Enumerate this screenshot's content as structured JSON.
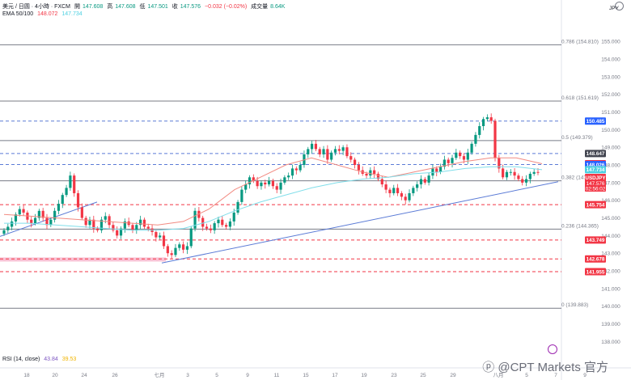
{
  "header": {
    "symbol_line": "美元 / 日圆 · 4小時 · FXCM",
    "ohlc": [
      {
        "label": "開",
        "value": "147.608"
      },
      {
        "label": "高",
        "value": "147.608"
      },
      {
        "label": "低",
        "value": "147.501"
      },
      {
        "label": "收",
        "value": "147.576"
      }
    ],
    "change": "−0.032 (−0.02%)",
    "volume_label": "成交量",
    "volume_value": "8.64K",
    "ema_label": "EMA 50/100",
    "ema50": "148.072",
    "ema100": "147.734"
  },
  "rsi": {
    "label": "RSI (14, close)",
    "v1": "43.84",
    "v2": "39.53"
  },
  "axis": {
    "currency": "JPY",
    "ticks": [
      "155.000",
      "154.000",
      "153.000",
      "152.000",
      "151.000",
      "150.000",
      "149.000",
      "148.000",
      "147.000",
      "146.000",
      "145.000",
      "144.000",
      "143.000",
      "142.000",
      "141.000",
      "140.000",
      "139.000",
      "138.000"
    ],
    "tick_values": [
      155,
      154,
      153,
      152,
      151,
      150,
      149,
      148,
      147,
      146,
      145,
      144,
      143,
      142,
      141,
      140,
      139,
      138
    ],
    "x_labels": [
      "18",
      "20",
      "24",
      "26",
      "七月",
      "3",
      "5",
      "9",
      "11",
      "15",
      "17",
      "19",
      "23",
      "25",
      "29",
      "八月",
      "5",
      "7",
      "9"
    ]
  },
  "chart_data": {
    "type": "candlestick",
    "ylim": [
      137.65,
      156.2
    ],
    "fib": [
      {
        "label": "0.786 (154.810)",
        "value": 154.81
      },
      {
        "label": "0.618 (151.619)",
        "value": 151.619
      },
      {
        "label": "0.5 (149.379)",
        "value": 149.379
      },
      {
        "label": "0.382 (147.1)",
        "value": 147.1
      },
      {
        "label": "0.236 (144.365)",
        "value": 144.365
      },
      {
        "label": "0 (139.883)",
        "value": 139.883
      }
    ],
    "dashed_levels": [
      {
        "value": 150.485,
        "color": "#5b7bd6"
      },
      {
        "value": 148.647,
        "color": "#5b7bd6"
      },
      {
        "value": 148.026,
        "color": "#5b7bd6"
      },
      {
        "value": 145.754,
        "color": "#f23645"
      },
      {
        "value": 143.749,
        "color": "#f23645"
      },
      {
        "value": 142.678,
        "color": "#f23645"
      },
      {
        "value": 141.955,
        "color": "#f23645"
      }
    ],
    "price_badges": [
      {
        "text": "150.485",
        "value": 150.485,
        "bg": "#2962ff",
        "fg": "#ffffff"
      },
      {
        "text": "148.647",
        "value": 148.647,
        "bg": "#434651",
        "fg": "#ffffff"
      },
      {
        "text": "148.072",
        "value": 148.072,
        "bg": "#f23645",
        "fg": "#ffffff"
      },
      {
        "text": "148.026",
        "value": 148.026,
        "bg": "#2962ff",
        "fg": "#ffffff"
      },
      {
        "text": "147.734",
        "value": 147.734,
        "bg": "#4dd0e1",
        "fg": "#ffffff"
      },
      {
        "text": "USDJPY",
        "value": 147.36,
        "bg": "#f23645",
        "fg": "#ffffff",
        "text2": "147.576",
        "text3": "02:56:02"
      },
      {
        "text": "145.754",
        "value": 145.754,
        "bg": "#f23645",
        "fg": "#ffffff"
      },
      {
        "text": "143.749",
        "value": 143.749,
        "bg": "#f23645",
        "fg": "#ffffff"
      },
      {
        "text": "142.678",
        "value": 142.678,
        "bg": "#f23645",
        "fg": "#ffffff"
      },
      {
        "text": "141.955",
        "value": 141.955,
        "bg": "#f23645",
        "fg": "#ffffff"
      }
    ],
    "closes": [
      144.3,
      144.5,
      144.8,
      145.2,
      145.5,
      145.3,
      144.9,
      144.7,
      145.0,
      145.4,
      145.0,
      144.6,
      144.9,
      145.4,
      145.8,
      146.3,
      146.7,
      147.4,
      146.4,
      145.6,
      145.0,
      144.6,
      144.9,
      144.4,
      144.3,
      144.9,
      145.1,
      144.6,
      144.3,
      144.0,
      144.4,
      144.8,
      144.6,
      144.3,
      144.6,
      144.9,
      144.5,
      144.4,
      144.2,
      143.9,
      144.0,
      143.4,
      143.0,
      142.9,
      143.3,
      143.5,
      143.2,
      143.4,
      144.4,
      145.4,
      145.0,
      144.5,
      144.4,
      144.3,
      144.7,
      144.9,
      144.6,
      144.5,
      144.8,
      145.3,
      145.9,
      146.6,
      146.9,
      147.3,
      147.1,
      146.8,
      147.0,
      146.9,
      147.1,
      146.8,
      146.6,
      147.0,
      147.3,
      147.4,
      147.8,
      147.7,
      148.0,
      148.6,
      148.9,
      149.2,
      148.9,
      148.6,
      148.9,
      148.3,
      148.7,
      148.9,
      148.8,
      149.0,
      148.5,
      148.3,
      148.0,
      147.7,
      147.5,
      147.4,
      147.7,
      147.5,
      147.2,
      146.9,
      146.6,
      146.4,
      146.7,
      146.4,
      146.2,
      146.0,
      146.4,
      146.7,
      146.9,
      147.2,
      147.0,
      147.4,
      147.8,
      147.6,
      147.9,
      148.3,
      148.1,
      148.4,
      148.7,
      148.5,
      148.3,
      148.7,
      149.2,
      149.7,
      150.2,
      150.6,
      150.7,
      150.5,
      148.4,
      147.8,
      147.3,
      147.6,
      147.6,
      147.4,
      147.2,
      147.0,
      147.2,
      147.5,
      147.6,
      147.576
    ],
    "ema50": [
      145.2,
      145.1,
      145.0,
      144.9,
      144.8,
      144.7,
      144.6,
      144.8,
      145.5,
      146.6,
      147.3,
      148.0,
      148.4,
      148.0,
      147.6,
      147.3,
      147.6,
      147.9,
      148.2,
      148.4,
      148.4,
      148.07
    ],
    "ema100": [
      144.7,
      144.7,
      144.6,
      144.5,
      144.4,
      144.3,
      144.3,
      144.4,
      144.8,
      145.4,
      145.9,
      146.3,
      146.7,
      147.0,
      147.2,
      147.3,
      147.5,
      147.6,
      147.8,
      147.9,
      147.9,
      147.73
    ]
  }
}
